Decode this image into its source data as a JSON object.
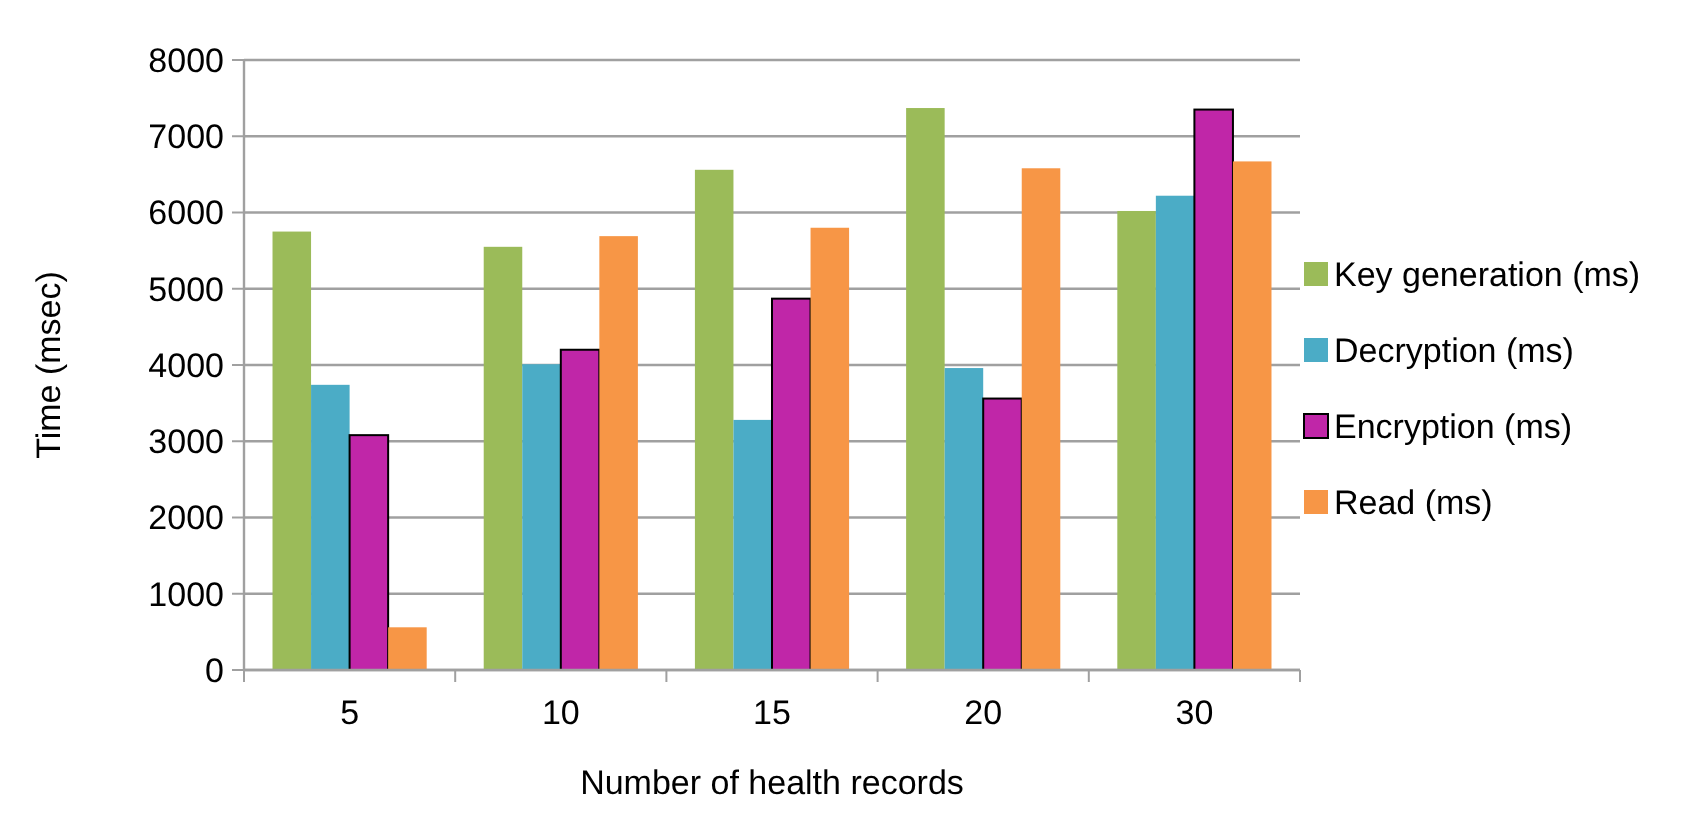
{
  "chart_data": {
    "type": "bar",
    "xlabel": "Number of health records",
    "ylabel": "Time (msec)",
    "categories": [
      "5",
      "10",
      "15",
      "20",
      "30"
    ],
    "series": [
      {
        "name": "Key generation (ms)",
        "color": "#9bbb59",
        "values": [
          5750,
          5550,
          6560,
          7370,
          6020
        ]
      },
      {
        "name": "Decryption (ms)",
        "color": "#4bacc6",
        "values": [
          3740,
          4010,
          3280,
          3960,
          6220
        ]
      },
      {
        "name": "Encryption (ms)",
        "color": "#c026a8",
        "values": [
          3080,
          4200,
          4870,
          3560,
          7350
        ]
      },
      {
        "name": "Read (ms)",
        "color": "#f79646",
        "values": [
          560,
          5690,
          5800,
          6580,
          6670
        ]
      }
    ],
    "ylim": [
      0,
      8000
    ],
    "yticks": [
      0,
      1000,
      2000,
      3000,
      4000,
      5000,
      6000,
      7000,
      8000
    ],
    "grid": "y",
    "legend": "right"
  }
}
